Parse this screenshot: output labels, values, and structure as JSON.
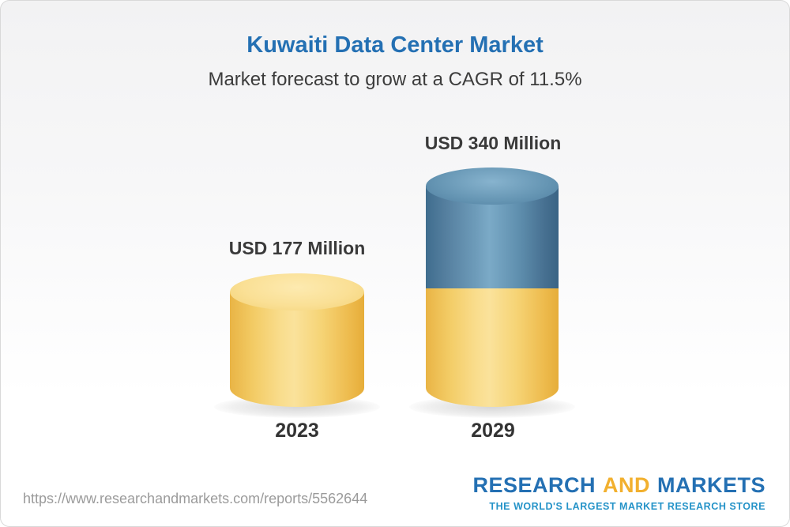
{
  "header": {
    "title": "Kuwaiti Data Center Market",
    "subtitle": "Market forecast to grow at a CAGR of 11.5%"
  },
  "chart_data": {
    "type": "bar",
    "categories": [
      "2023",
      "2029"
    ],
    "values": [
      177,
      340
    ],
    "value_labels": [
      "USD 177 Million",
      "USD 340 Million"
    ],
    "title": "Kuwaiti Data Center Market",
    "subtitle": "Market forecast to grow at a CAGR of 11.5%",
    "unit": "USD Million",
    "cagr": "11.5%",
    "ylim": [
      0,
      340
    ],
    "grid": false,
    "legend": false,
    "colors": {
      "bar_2023": "#f6ce65",
      "bar_2029_segment_base": "#f6ce65",
      "bar_2029_segment_growth": "#5d8cab",
      "title_blue": "#2470b3",
      "label_gray": "#3a3a3a"
    }
  },
  "footer": {
    "url": "https://www.researchandmarkets.com/reports/5562644",
    "logo": {
      "part1": "RESEARCH",
      "part2": "AND",
      "part3": "MARKETS",
      "tagline": "THE WORLD'S LARGEST MARKET RESEARCH STORE"
    }
  }
}
